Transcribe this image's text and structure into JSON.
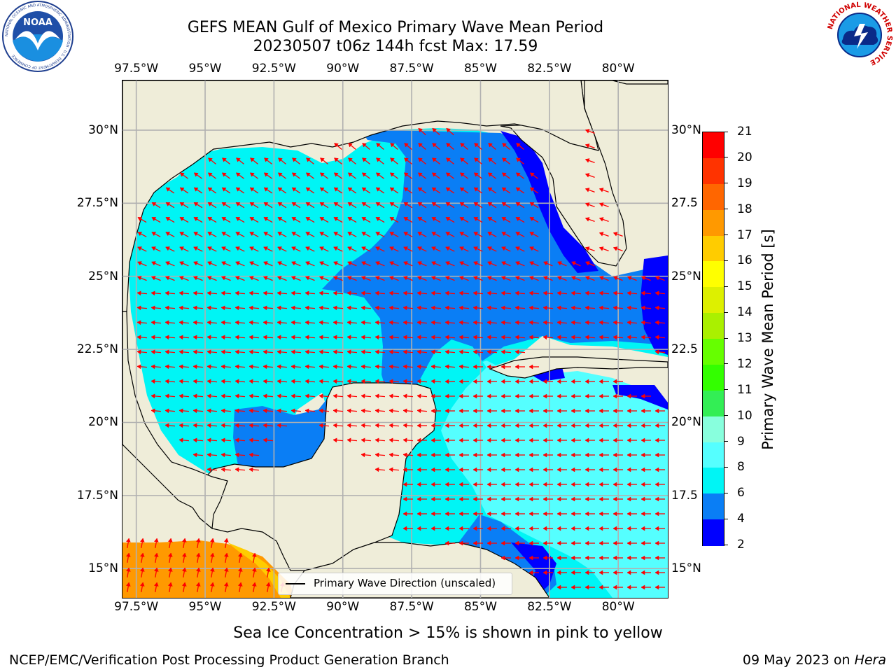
{
  "title": {
    "line1": "GEFS MEAN Gulf of Mexico Primary Wave Mean Period",
    "line2": "20230507 t06z 144h fcst   Max: 17.59"
  },
  "map": {
    "lon_ticks": [
      "97.5°W",
      "95°W",
      "92.5°W",
      "90°W",
      "87.5°W",
      "85°W",
      "82.5°W",
      "80°W"
    ],
    "lat_ticks_left": [
      "30°N",
      "27.5°N",
      "25°N",
      "22.5°N",
      "20°N",
      "17.5°N",
      "15°N"
    ],
    "lat_ticks_right": [
      "30°N",
      "27.5",
      "25°N",
      "22.5",
      "20°N",
      "17.5",
      "15°N"
    ],
    "lon_range": [
      -98,
      -78.2
    ],
    "lat_range": [
      14,
      31.7
    ],
    "grid": true,
    "land_color": "#efedd9",
    "arrow_color": "#ff0000",
    "coast_color": "#000000"
  },
  "legend": {
    "label": "Primary Wave Direction (unscaled)"
  },
  "colorbar": {
    "label": "Primary Wave Mean Period [s]",
    "ticks": [
      "2",
      "4",
      "6",
      "8",
      "9",
      "10",
      "11",
      "12",
      "13",
      "14",
      "15",
      "16",
      "17",
      "18",
      "19",
      "20",
      "21"
    ],
    "colors": [
      "#0000ff",
      "#0a7ef5",
      "#00f5f5",
      "#55ffff",
      "#88ffdd",
      "#33ee55",
      "#33ff00",
      "#66ff00",
      "#aaf000",
      "#ddf000",
      "#ffff00",
      "#ffcc00",
      "#ff9900",
      "#ff6600",
      "#ff3300",
      "#ff0000"
    ]
  },
  "note": "Sea Ice Concentration > 15% is shown in pink to yellow",
  "footer": {
    "left": "NCEP/EMC/Verification Post Processing Product Generation Branch",
    "right_prefix": "09 May 2023 on ",
    "right_host": "Hera"
  },
  "logos": {
    "left_name": "noaa-logo",
    "left_text": "NOAA",
    "left_ring": "NATIONAL OCEANIC AND ATMOSPHERIC ADMINISTRATION · U.S. DEPARTMENT OF COMMERCE",
    "right_name": "nws-logo",
    "right_ring": "NATIONAL WEATHER SERVICE"
  }
}
